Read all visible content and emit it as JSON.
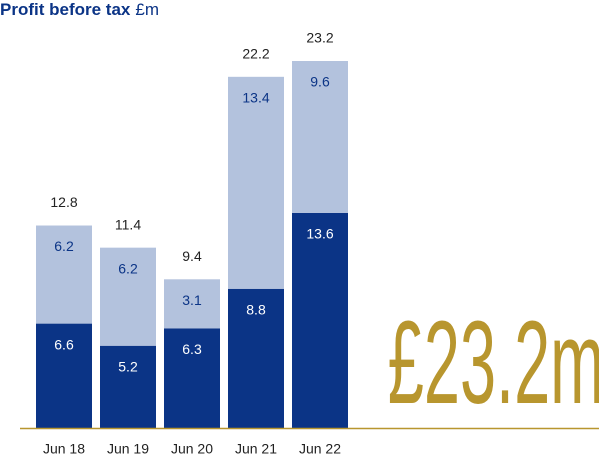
{
  "chart_data": {
    "type": "stacked_bar",
    "title": "Profit before tax",
    "unit": "£m",
    "categories": [
      "Jun 18",
      "Jun 19",
      "Jun 20",
      "Jun 21",
      "Jun 22"
    ],
    "series": [
      {
        "color": "#0b3486",
        "values": [
          6.6,
          5.2,
          6.3,
          8.8,
          13.6
        ]
      },
      {
        "color": "#b3c2dd",
        "values": [
          6.2,
          6.2,
          3.1,
          13.4,
          9.6
        ]
      }
    ],
    "totals": [
      12.8,
      11.4,
      9.4,
      22.2,
      23.2
    ],
    "highlight": "£23.2m",
    "accent": "#b8962e"
  }
}
